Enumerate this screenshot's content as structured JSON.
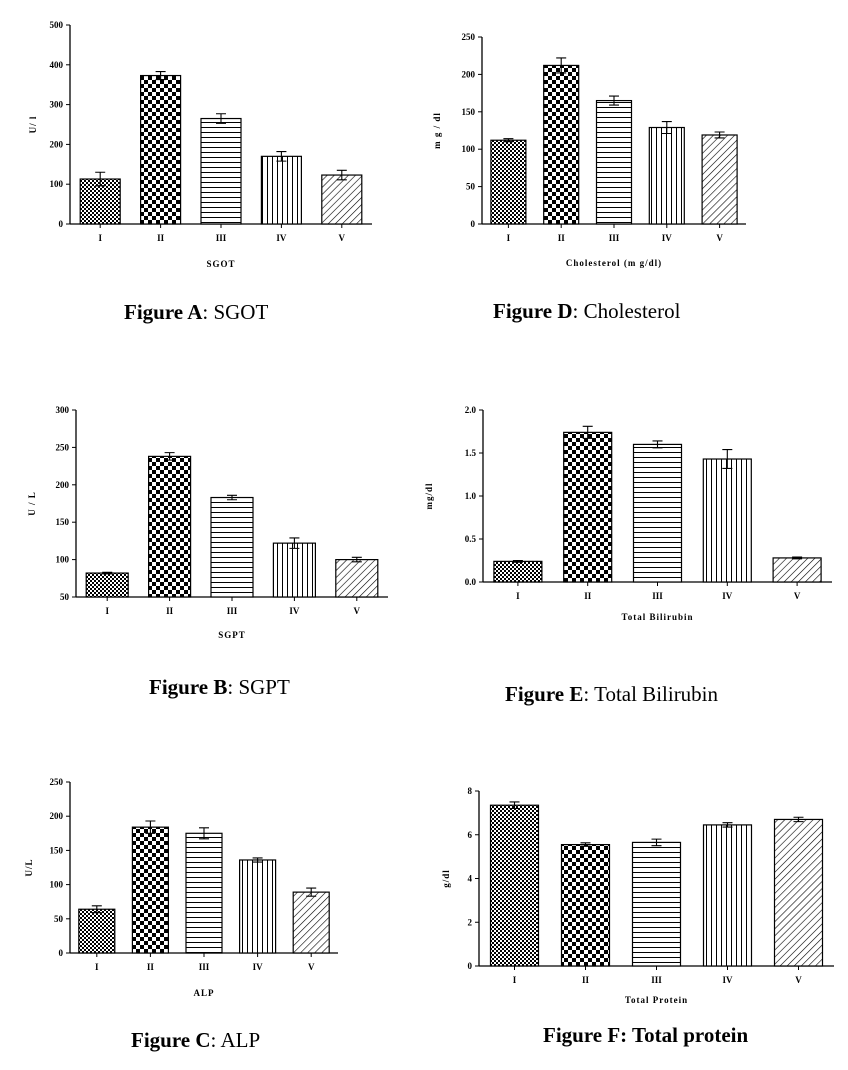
{
  "chart_data": [
    {
      "id": "A",
      "type": "bar",
      "categories": [
        "I",
        "II",
        "III",
        "IV",
        "V"
      ],
      "values": [
        113,
        373,
        265,
        170,
        123
      ],
      "errors": [
        17,
        10,
        12,
        12,
        12
      ],
      "ylim": [
        0,
        500
      ],
      "yticks": [
        "0",
        "100",
        "200",
        "300",
        "400",
        "500"
      ],
      "ytick_values": [
        0,
        100,
        200,
        300,
        400,
        500
      ],
      "ylabel": "U/ l",
      "xlabel": "SGOT",
      "caption_bold": "Figure  A",
      "caption_rest": ": SGOT"
    },
    {
      "id": "D",
      "type": "bar",
      "categories": [
        "I",
        "II",
        "III",
        "IV",
        "V"
      ],
      "values": [
        112,
        212,
        165,
        129,
        119
      ],
      "errors": [
        2,
        10,
        6,
        8,
        4
      ],
      "ylim": [
        0,
        250
      ],
      "yticks": [
        "0",
        "50",
        "100",
        "150",
        "200",
        "250"
      ],
      "ytick_values": [
        0,
        50,
        100,
        150,
        200,
        250
      ],
      "ylabel": "m g / dl",
      "xlabel": "Cholesterol (m g/dl)",
      "caption_bold": "Figure D",
      "caption_rest": ": Cholesterol"
    },
    {
      "id": "B",
      "type": "bar",
      "categories": [
        "I",
        "II",
        "III",
        "IV",
        "V"
      ],
      "values": [
        82,
        238,
        183,
        122,
        100
      ],
      "errors": [
        1,
        5,
        3,
        7,
        3
      ],
      "ylim": [
        50,
        300
      ],
      "yticks": [
        "50",
        "100",
        "150",
        "200",
        "250",
        "300"
      ],
      "ytick_values": [
        50,
        100,
        150,
        200,
        250,
        300
      ],
      "ylabel": "U / L",
      "xlabel": "SGPT",
      "caption_bold": "Figure B",
      "caption_rest": ": SGPT"
    },
    {
      "id": "E",
      "type": "bar",
      "categories": [
        "I",
        "II",
        "III",
        "IV",
        "V"
      ],
      "values": [
        0.24,
        1.74,
        1.6,
        1.43,
        0.28
      ],
      "errors": [
        0.01,
        0.07,
        0.04,
        0.11,
        0.01
      ],
      "ylim": [
        0,
        2
      ],
      "yticks": [
        "0.0",
        "0.5",
        "1.0",
        "1.5",
        "2.0"
      ],
      "ytick_values": [
        0,
        0.5,
        1.0,
        1.5,
        2.0
      ],
      "ylabel": "mg/dl",
      "xlabel": "Total Bilirubin",
      "caption_bold": "Figure E",
      "caption_rest": ": Total Bilirubin"
    },
    {
      "id": "C",
      "type": "bar",
      "categories": [
        "I",
        "II",
        "III",
        "IV",
        "V"
      ],
      "values": [
        64,
        184,
        175,
        136,
        89
      ],
      "errors": [
        5,
        9,
        8,
        3,
        6
      ],
      "ylim": [
        0,
        250
      ],
      "yticks": [
        "0",
        "50",
        "100",
        "150",
        "200",
        "250"
      ],
      "ytick_values": [
        0,
        50,
        100,
        150,
        200,
        250
      ],
      "ylabel": "U/L",
      "xlabel": "ALP",
      "caption_bold": "Figure C",
      "caption_rest": ": ALP"
    },
    {
      "id": "F",
      "type": "bar",
      "categories": [
        "I",
        "II",
        "III",
        "IV",
        "V"
      ],
      "values": [
        7.35,
        5.55,
        5.65,
        6.45,
        6.7
      ],
      "errors": [
        0.15,
        0.08,
        0.15,
        0.1,
        0.1
      ],
      "ylim": [
        0,
        8
      ],
      "yticks": [
        "0",
        "2",
        "4",
        "6",
        "8"
      ],
      "ytick_values": [
        0,
        2,
        4,
        6,
        8
      ],
      "ylabel": "g/dl",
      "xlabel": "Total Protein",
      "caption_bold": "Figure F: Total protein",
      "caption_rest": ""
    }
  ]
}
